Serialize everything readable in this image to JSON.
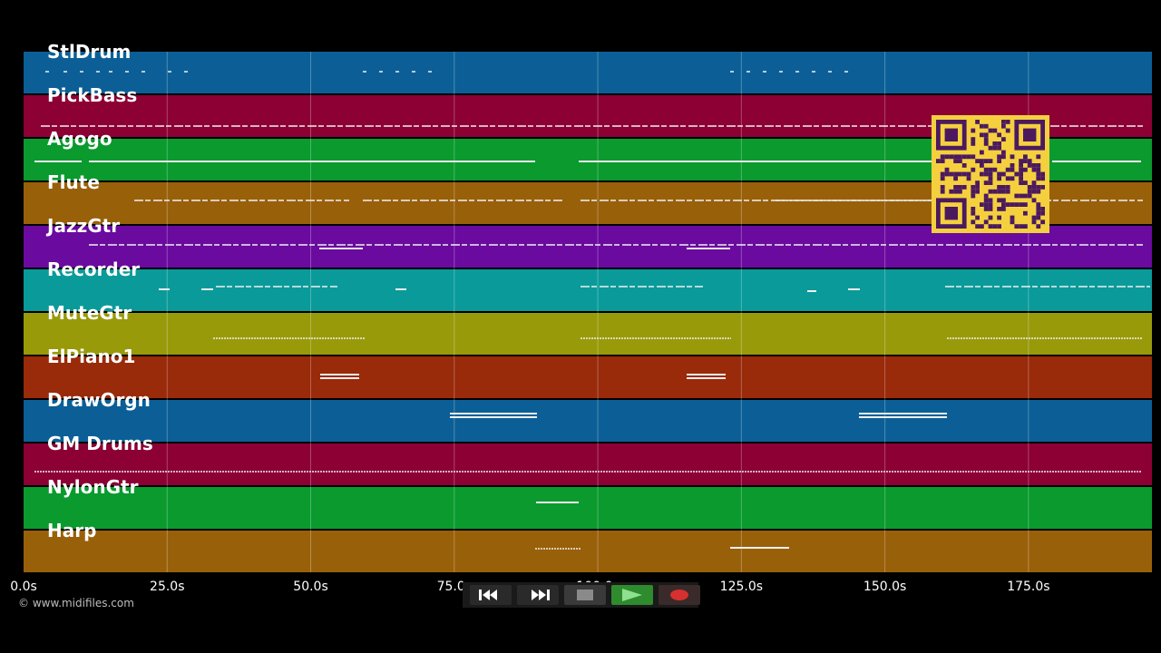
{
  "tracks": [
    {
      "name": "StlDrum",
      "color": "#0b5f96"
    },
    {
      "name": "PickBass",
      "color": "#8c0034"
    },
    {
      "name": "Agogo",
      "color": "#0a9a2e"
    },
    {
      "name": "Flute",
      "color": "#99600a"
    },
    {
      "name": "JazzGtr",
      "color": "#6a0a9e"
    },
    {
      "name": "Recorder",
      "color": "#0a9a9a"
    },
    {
      "name": "MuteGtr",
      "color": "#999a0a"
    },
    {
      "name": "ElPiano1",
      "color": "#992a0a"
    },
    {
      "name": "DrawOrgn",
      "color": "#0b5f96"
    },
    {
      "name": "GM Drums",
      "color": "#8c0034"
    },
    {
      "name": "NylonGtr",
      "color": "#0a9a2e"
    },
    {
      "name": "Harp",
      "color": "#99600a"
    }
  ],
  "time_axis": {
    "ticks": [
      "0.0s",
      "25.0s",
      "50.0s",
      "75.0s",
      "100.0s",
      "125.0s",
      "150.0s",
      "175.0s"
    ],
    "tick_values": [
      0,
      25,
      50,
      75,
      100,
      125,
      150,
      175
    ],
    "range": [
      0,
      196.5
    ]
  },
  "copyright": "© www.midifiles.com",
  "transport": {
    "rewind": "rewind-icon",
    "fast_forward": "fast-forward-icon",
    "stop": "stop-icon",
    "play": "play-icon",
    "record": "record-icon"
  },
  "colors": {
    "play": "#2e8b2e",
    "record": "#d63030",
    "qr_background": "#f4d03f",
    "qr_foreground": "#4b1a5e"
  }
}
